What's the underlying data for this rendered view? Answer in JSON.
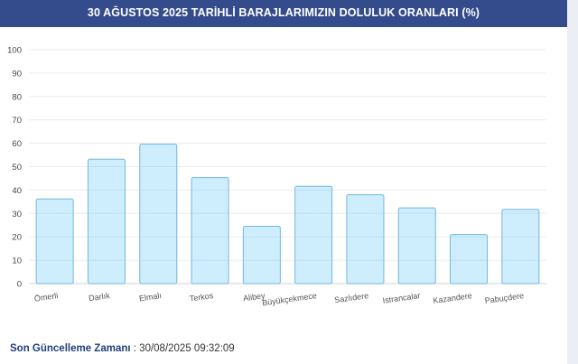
{
  "header": {
    "title": "30 AĞUSTOS 2025 TARİHLİ BARAJLARIMIZIN DOLULUK ORANLARI (%)"
  },
  "chart_data": {
    "type": "bar",
    "title": "30 AĞUSTOS 2025 TARİHLİ BARAJLARIMIZIN DOLULUK ORANLARI (%)",
    "categories": [
      "Ömerli",
      "Darlık",
      "Elmalı",
      "Terkos",
      "Alibey",
      "Büyükçekmece",
      "Sazlıdere",
      "Istrancalar",
      "Kazandere",
      "Pabuçdere"
    ],
    "values": [
      36.2,
      53.2,
      59.6,
      45.3,
      24.5,
      41.6,
      38.0,
      32.4,
      21.0,
      31.7
    ],
    "ylim": [
      0,
      100
    ],
    "yticks": [
      0,
      10,
      20,
      30,
      40,
      50,
      60,
      70,
      80,
      90,
      100
    ],
    "grid": true,
    "legend": "none",
    "colors": {
      "bar_fill": "#cfeefd",
      "bar_stroke": "#6fb6df",
      "header_bg": "#344c8c"
    }
  },
  "footer": {
    "label": "Son Güncelleme Zamanı",
    "separator": " : ",
    "timestamp": "30/08/2025 09:32:09"
  }
}
